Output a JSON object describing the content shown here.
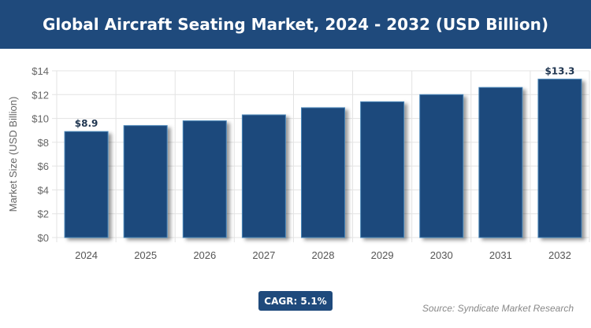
{
  "title": "Global Aircraft Seating Market, 2024 - 2032 (USD Billion)",
  "cagr": "CAGR: 5.1%",
  "source": "Source: Syndicate Market Research",
  "chart_data": {
    "type": "bar",
    "title": "Global Aircraft Seating Market, 2024 - 2032 (USD Billion)",
    "xlabel": "",
    "ylabel": "Market Size (USD Billion)",
    "categories": [
      "2024",
      "2025",
      "2026",
      "2027",
      "2028",
      "2029",
      "2030",
      "2031",
      "2032"
    ],
    "values": [
      8.9,
      9.4,
      9.8,
      10.3,
      10.9,
      11.4,
      12.0,
      12.6,
      13.3
    ],
    "data_labels": {
      "0": "$8.9",
      "8": "$13.3"
    },
    "ylim": [
      0,
      14
    ],
    "yticks": [
      "$0",
      "$2",
      "$4",
      "$6",
      "$8",
      "$10",
      "$12",
      "$14"
    ],
    "grid": true,
    "bar_color": "#1f4a7c"
  }
}
